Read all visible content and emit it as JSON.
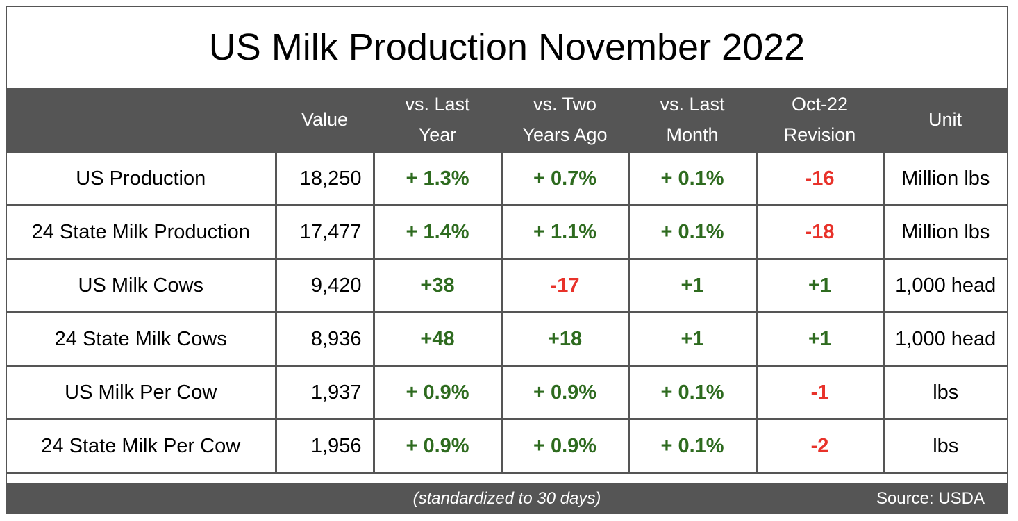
{
  "title": "US Milk Production November 2022",
  "headers": [
    "",
    "Value",
    "vs. Last\nYear",
    "vs. Two\nYears Ago",
    "vs. Last\nMonth",
    "Oct-22\nRevision",
    "Unit"
  ],
  "rows": [
    {
      "label": "US Production",
      "value": "18,250",
      "yoy": "+ 1.3%",
      "two_year": "+ 0.7%",
      "mom": "+ 0.1%",
      "revision": "-16",
      "unit": "Million lbs"
    },
    {
      "label": "24 State Milk Production",
      "value": "17,477",
      "yoy": "+ 1.4%",
      "two_year": "+ 1.1%",
      "mom": "+ 0.1%",
      "revision": "-18",
      "unit": "Million lbs"
    },
    {
      "label": "US Milk Cows",
      "value": "9,420",
      "yoy": "+38",
      "two_year": "-17",
      "mom": "+1",
      "revision": "+1",
      "unit": "1,000 head"
    },
    {
      "label": "24 State Milk Cows",
      "value": "8,936",
      "yoy": "+48",
      "two_year": "+18",
      "mom": "+1",
      "revision": "+1",
      "unit": "1,000 head"
    },
    {
      "label": "US Milk Per Cow",
      "value": "1,937",
      "yoy": "+ 0.9%",
      "two_year": "+ 0.9%",
      "mom": "+ 0.1%",
      "revision": "-1",
      "unit": "lbs"
    },
    {
      "label": "24 State Milk Per Cow",
      "value": "1,956",
      "yoy": "+ 0.9%",
      "two_year": "+ 0.9%",
      "mom": "+ 0.1%",
      "revision": "-2",
      "unit": "lbs"
    }
  ],
  "footer": {
    "note": "(standardized to 30 days)",
    "source": "Source: USDA"
  },
  "colors": {
    "positive": "#2e6b1f",
    "negative": "#e8322a",
    "header_bg": "#555555"
  }
}
